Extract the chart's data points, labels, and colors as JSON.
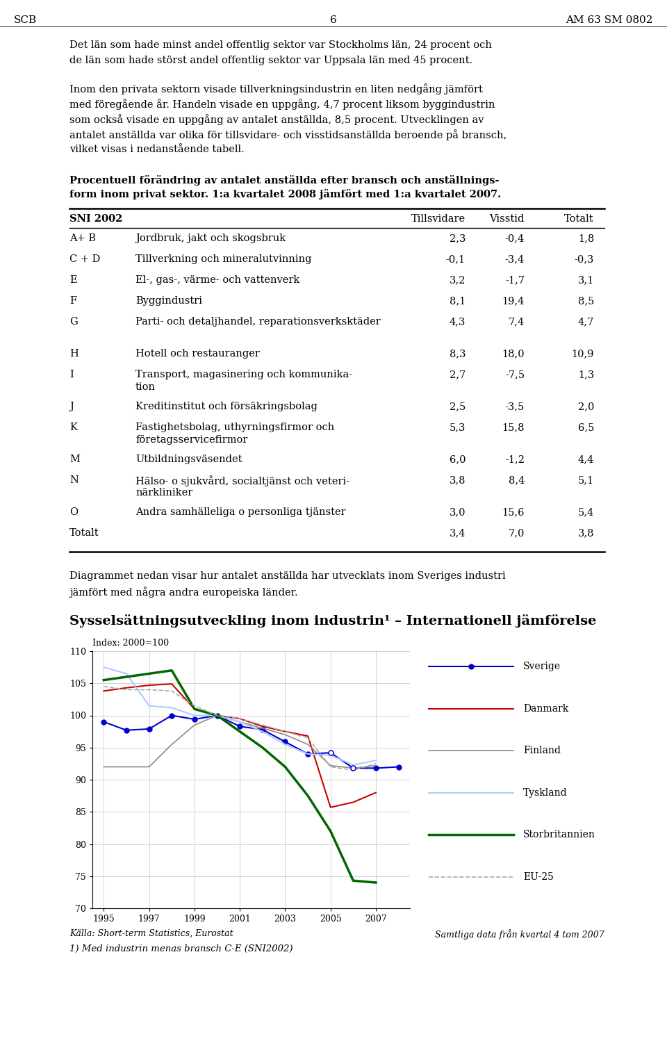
{
  "header_left": "SCB",
  "header_center": "6",
  "header_right": "AM 63 SM 0802",
  "paragraph1": "Det län som hade minst andel offentlig sektor var Stockholms län, 24 procent och\nde län som hade störst andel offentlig sektor var Uppsala län med 45 procent.",
  "paragraph2": "Inom den privata sektorn visade tillverkningsindustrin en liten nedgång jämfört\nmed föregående år. Handeln visade en uppgång, 4,7 procent liksom byggindustrin\nsom också visade en uppgång av antalet anställda, 8,5 procent. Utvecklingen av\nantalet anställda var olika för tillsvidare- och visstidsanställda beroende på bransch,\nvilket visas i nedanstående tabell.",
  "table_title_line1": "Procentuell förändring av antalet anställda efter bransch och anställnings-",
  "table_title_line2": "form inom privat sektor. 1:a kvartalet 2008 jämfört med 1:a kvartalet 2007.",
  "table_rows": [
    [
      "A+ B",
      "Jordbruk, jakt och skogsbruk",
      "2,3",
      "-0,4",
      "1,8",
      1
    ],
    [
      "C + D",
      "Tillverkning och mineralutvinning",
      "-0,1",
      "-3,4",
      "-0,3",
      1
    ],
    [
      "E",
      "El-, gas-, värme- och vattenverk",
      "3,2",
      "-1,7",
      "3,1",
      1
    ],
    [
      "F",
      "Byggindustri",
      "8,1",
      "19,4",
      "8,5",
      1
    ],
    [
      "G",
      "Parti- och detaljhandel, reparationsverksktäder",
      "4,3",
      "7,4",
      "4,7",
      2
    ],
    [
      "H",
      "Hotell och restauranger",
      "8,3",
      "18,0",
      "10,9",
      1
    ],
    [
      "I",
      "Transport, magasinering och kommunika-\ntion",
      "2,7",
      "-7,5",
      "1,3",
      2
    ],
    [
      "J",
      "Kreditinstitut och försäkringsbolag",
      "2,5",
      "-3,5",
      "2,0",
      1
    ],
    [
      "K",
      "Fastighetsbolag, uthyrningsfirmor och\nföretagsservicefirmor",
      "5,3",
      "15,8",
      "6,5",
      2
    ],
    [
      "M",
      "Utbildningsväsendet",
      "6,0",
      "-1,2",
      "4,4",
      1
    ],
    [
      "N",
      "Hälso- o sjukvård, socialtjänst och veteri-\nnärkliniker",
      "3,8",
      "8,4",
      "5,1",
      2
    ],
    [
      "O",
      "Andra samhälleliga o personliga tjänster",
      "3,0",
      "15,6",
      "5,4",
      1
    ],
    [
      "Totalt",
      "",
      "3,4",
      "7,0",
      "3,8",
      1
    ]
  ],
  "paragraph3": "Diagrammet nedan visar hur antalet anställda har utvecklats inom Sveriges industri\njämfört med några andra europeiska länder.",
  "chart_title": "Sysselsättningsutveckling inom industrin¹ – Internationell jämförelse",
  "chart_index_label": "Index: 2000=100",
  "chart_yticks": [
    70,
    75,
    80,
    85,
    90,
    95,
    100,
    105,
    110
  ],
  "chart_xticks": [
    1995,
    1997,
    1999,
    2001,
    2003,
    2005,
    2007
  ],
  "series": {
    "Sverige": {
      "color": "#0000CC",
      "marker": "o",
      "linewidth": 1.5,
      "markersize": 5,
      "linestyle": "-",
      "data": [
        [
          1995,
          99.0
        ],
        [
          1996,
          97.7
        ],
        [
          1997,
          97.9
        ],
        [
          1998,
          100.0
        ],
        [
          1999,
          99.4
        ],
        [
          2000,
          100.0
        ],
        [
          2001,
          98.3
        ],
        [
          2002,
          97.8
        ],
        [
          2003,
          95.9
        ],
        [
          2004,
          94.0
        ],
        [
          2005,
          94.2
        ],
        [
          2006,
          91.8
        ],
        [
          2007,
          91.8
        ],
        [
          2008,
          92.0
        ]
      ],
      "open_circles": [
        2005,
        2006
      ]
    },
    "Danmark": {
      "color": "#CC0000",
      "marker": null,
      "linewidth": 1.5,
      "markersize": 0,
      "linestyle": "-",
      "data": [
        [
          1995,
          103.8
        ],
        [
          1996,
          104.3
        ],
        [
          1997,
          104.7
        ],
        [
          1998,
          104.9
        ],
        [
          1999,
          101.0
        ],
        [
          2000,
          100.0
        ],
        [
          2001,
          99.5
        ],
        [
          2002,
          98.3
        ],
        [
          2003,
          97.5
        ],
        [
          2004,
          96.8
        ],
        [
          2005,
          85.7
        ],
        [
          2006,
          86.5
        ],
        [
          2007,
          88.0
        ]
      ]
    },
    "Finland": {
      "color": "#888888",
      "marker": null,
      "linewidth": 1.2,
      "markersize": 0,
      "linestyle": "-",
      "data": [
        [
          1995,
          92.0
        ],
        [
          1996,
          92.0
        ],
        [
          1997,
          92.0
        ],
        [
          1998,
          95.5
        ],
        [
          1999,
          98.5
        ],
        [
          2000,
          100.0
        ],
        [
          2001,
          99.0
        ],
        [
          2002,
          98.0
        ],
        [
          2003,
          97.0
        ],
        [
          2004,
          95.5
        ],
        [
          2005,
          92.2
        ],
        [
          2006,
          91.8
        ],
        [
          2007,
          92.2
        ]
      ]
    },
    "Tyskland": {
      "color": "#aaccff",
      "marker": null,
      "linewidth": 1.5,
      "markersize": 0,
      "linestyle": "-",
      "data": [
        [
          1995,
          107.5
        ],
        [
          1996,
          106.5
        ],
        [
          1997,
          101.5
        ],
        [
          1998,
          101.2
        ],
        [
          1999,
          100.0
        ],
        [
          2000,
          100.0
        ],
        [
          2001,
          99.0
        ],
        [
          2002,
          97.5
        ],
        [
          2003,
          95.5
        ],
        [
          2004,
          94.0
        ],
        [
          2005,
          93.8
        ],
        [
          2006,
          92.3
        ],
        [
          2007,
          93.0
        ]
      ]
    },
    "Storbritannien": {
      "color": "#006600",
      "marker": null,
      "linewidth": 2.5,
      "markersize": 0,
      "linestyle": "-",
      "data": [
        [
          1995,
          105.5
        ],
        [
          1996,
          106.0
        ],
        [
          1997,
          106.5
        ],
        [
          1998,
          107.0
        ],
        [
          1999,
          101.0
        ],
        [
          2000,
          100.0
        ],
        [
          2001,
          97.5
        ],
        [
          2002,
          95.0
        ],
        [
          2003,
          92.0
        ],
        [
          2004,
          87.5
        ],
        [
          2005,
          82.0
        ],
        [
          2006,
          74.3
        ],
        [
          2007,
          74.0
        ]
      ]
    },
    "EU-25": {
      "color": "#aaaaaa",
      "marker": null,
      "linewidth": 1.2,
      "markersize": 0,
      "linestyle": "--",
      "data": [
        [
          1995,
          104.5
        ],
        [
          1996,
          104.0
        ],
        [
          1997,
          104.0
        ],
        [
          1998,
          103.8
        ],
        [
          1999,
          101.5
        ],
        [
          2000,
          100.0
        ],
        [
          2001,
          99.5
        ],
        [
          2002,
          98.5
        ],
        [
          2003,
          97.5
        ],
        [
          2004,
          96.5
        ],
        [
          2005,
          92.0
        ],
        [
          2006,
          91.5
        ],
        [
          2007,
          92.5
        ]
      ]
    }
  },
  "legend_order": [
    "Sverige",
    "Danmark",
    "Finland",
    "Tyskland",
    "Storbritannien",
    "EU-25"
  ],
  "footer_left": "Källa: Short-term Statistics, Eurostat",
  "footer_right": "Samtliga data från kvartal 4 tom 2007",
  "footnote": "1) Med industrin menas bransch C-E (SNI2002)"
}
